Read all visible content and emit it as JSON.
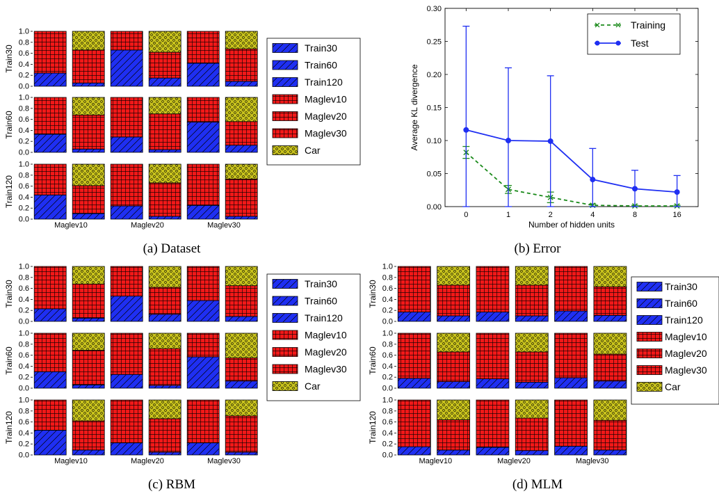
{
  "colors": {
    "train": "#1f2ff2",
    "maglev": "#f21818",
    "car": "#c8c21c",
    "training_line": "#1a8a1a",
    "test_line": "#1f2ff2"
  },
  "legend_entries": [
    {
      "label": "Train30",
      "kind": "train"
    },
    {
      "label": "Train60",
      "kind": "train"
    },
    {
      "label": "Train120",
      "kind": "train"
    },
    {
      "label": "Maglev10",
      "kind": "maglev"
    },
    {
      "label": "Maglev20",
      "kind": "maglev"
    },
    {
      "label": "Maglev30",
      "kind": "maglev"
    },
    {
      "label": "Car",
      "kind": "car"
    }
  ],
  "chart_data": [
    {
      "id": "dataset",
      "type": "bar",
      "caption": "(a) Dataset",
      "row_labels": [
        "Train30",
        "Train60",
        "Train120"
      ],
      "group_labels": [
        "Maglev10",
        "Maglev20",
        "Maglev30"
      ],
      "yticks": [
        "0.0",
        "0.2",
        "0.4",
        "0.6",
        "0.8",
        "1.0"
      ],
      "ylim": [
        0,
        1
      ],
      "bars": [
        [
          [
            0.24,
            0.76
          ],
          [
            0.06,
            0.6,
            0.34
          ],
          [
            0.66,
            0.34
          ],
          [
            0.15,
            0.47,
            0.38
          ],
          [
            0.42,
            0.58
          ],
          [
            0.09,
            0.59,
            0.32
          ]
        ],
        [
          [
            0.33,
            0.67
          ],
          [
            0.06,
            0.62,
            0.32
          ],
          [
            0.28,
            0.72
          ],
          [
            0.05,
            0.65,
            0.3
          ],
          [
            0.55,
            0.45
          ],
          [
            0.13,
            0.43,
            0.44
          ]
        ],
        [
          [
            0.44,
            0.56
          ],
          [
            0.1,
            0.51,
            0.39
          ],
          [
            0.24,
            0.76
          ],
          [
            0.05,
            0.61,
            0.34
          ],
          [
            0.25,
            0.75
          ],
          [
            0.05,
            0.68,
            0.27
          ]
        ]
      ]
    },
    {
      "id": "error",
      "type": "line",
      "caption": "(b) Error",
      "xlabel": "Number of hidden units",
      "ylabel": "Average KL divergence",
      "x": [
        "0",
        "1",
        "2",
        "4",
        "8",
        "16"
      ],
      "yticks": [
        "0.00",
        "0.05",
        "0.10",
        "0.15",
        "0.20",
        "0.25",
        "0.30"
      ],
      "ylim": [
        0,
        0.3
      ],
      "legend_position": "top-right",
      "series": [
        {
          "name": "Training",
          "values": [
            0.082,
            0.026,
            0.014,
            0.002,
            0.001,
            0.001
          ],
          "err_low": [
            0.009,
            0.006,
            0.008,
            0.002,
            0.001,
            0.001
          ],
          "err_high": [
            0.009,
            0.006,
            0.008,
            0.002,
            0.001,
            0.001
          ],
          "style": "dashed-x"
        },
        {
          "name": "Test",
          "values": [
            0.116,
            0.1,
            0.099,
            0.041,
            0.027,
            0.022
          ],
          "err_low": [
            0.116,
            0.1,
            0.099,
            0.041,
            0.027,
            0.022
          ],
          "err_high": [
            0.157,
            0.11,
            0.099,
            0.047,
            0.028,
            0.025
          ],
          "style": "solid-o"
        }
      ]
    },
    {
      "id": "rbm",
      "type": "bar",
      "caption": "(c) RBM",
      "row_labels": [
        "Train30",
        "Train60",
        "Train120"
      ],
      "group_labels": [
        "Maglev10",
        "Maglev20",
        "Maglev30"
      ],
      "yticks": [
        "0.0",
        "0.2",
        "0.4",
        "0.6",
        "0.8",
        "1.0"
      ],
      "ylim": [
        0,
        1
      ],
      "bars": [
        [
          [
            0.23,
            0.77
          ],
          [
            0.06,
            0.62,
            0.32
          ],
          [
            0.46,
            0.54
          ],
          [
            0.13,
            0.49,
            0.38
          ],
          [
            0.38,
            0.62
          ],
          [
            0.09,
            0.56,
            0.35
          ]
        ],
        [
          [
            0.3,
            0.7
          ],
          [
            0.06,
            0.63,
            0.31
          ],
          [
            0.25,
            0.75
          ],
          [
            0.05,
            0.67,
            0.28
          ],
          [
            0.57,
            0.43
          ],
          [
            0.13,
            0.42,
            0.45
          ]
        ],
        [
          [
            0.45,
            0.55
          ],
          [
            0.09,
            0.53,
            0.38
          ],
          [
            0.22,
            0.78
          ],
          [
            0.05,
            0.61,
            0.34
          ],
          [
            0.22,
            0.78
          ],
          [
            0.05,
            0.66,
            0.29
          ]
        ]
      ]
    },
    {
      "id": "mlm",
      "type": "bar",
      "caption": "(d) MLM",
      "row_labels": [
        "Train30",
        "Train60",
        "Train120"
      ],
      "group_labels": [
        "Maglev10",
        "Maglev20",
        "Maglev30"
      ],
      "yticks": [
        "0.0",
        "0.2",
        "0.4",
        "0.6",
        "0.8",
        "1.0"
      ],
      "ylim": [
        0,
        1
      ],
      "bars": [
        [
          [
            0.17,
            0.83
          ],
          [
            0.1,
            0.56,
            0.34
          ],
          [
            0.17,
            0.83
          ],
          [
            0.1,
            0.56,
            0.34
          ],
          [
            0.19,
            0.81
          ],
          [
            0.11,
            0.52,
            0.37
          ]
        ],
        [
          [
            0.18,
            0.82
          ],
          [
            0.12,
            0.54,
            0.34
          ],
          [
            0.17,
            0.83
          ],
          [
            0.11,
            0.55,
            0.34
          ],
          [
            0.19,
            0.81
          ],
          [
            0.13,
            0.49,
            0.38
          ]
        ],
        [
          [
            0.15,
            0.85
          ],
          [
            0.09,
            0.55,
            0.36
          ],
          [
            0.14,
            0.86
          ],
          [
            0.08,
            0.59,
            0.33
          ],
          [
            0.16,
            0.84
          ],
          [
            0.09,
            0.54,
            0.37
          ]
        ]
      ]
    }
  ]
}
